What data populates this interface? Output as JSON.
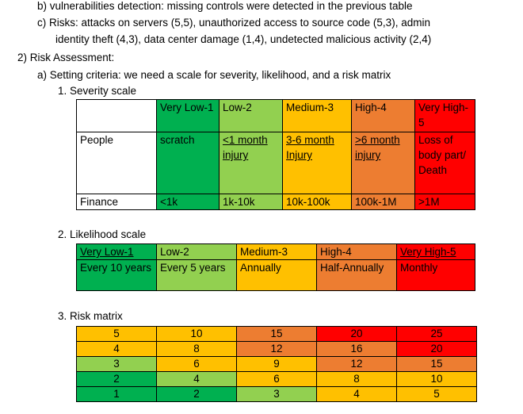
{
  "intro": {
    "line_b": "b)  vulnerabilities detection: missing controls were detected in the previous table",
    "line_c1": "c)  Risks: attacks on servers (5,5), unauthorized access to source code (5,3), admin",
    "line_c2": "identity theft (4,3), data center damage (1,4), undetected malicious activity (2,4)"
  },
  "section": {
    "heading": "2)  Risk Assessment:",
    "sub_a": "a)  Setting criteria: we need a scale for severity, likelihood, and a risk matrix"
  },
  "severity": {
    "title": "1.  Severity scale",
    "header": [
      "",
      "Very Low-1",
      "Low-2",
      "Medium-3",
      "High-4",
      "Very High-5"
    ],
    "people": [
      "People",
      "scratch",
      "<1 month injury",
      "3-6 month Injury",
      ">6 month injury",
      "Loss of body part/ Death"
    ],
    "finance": [
      "Finance",
      "<1k",
      "1k-10k",
      "10k-100k",
      "100k-1M",
      ">1M"
    ]
  },
  "likelihood": {
    "title": "2.  Likelihood scale",
    "labels": [
      "Very Low-1",
      "Low-2",
      "Medium-3",
      "High-4",
      "Very High-5"
    ],
    "frequencies": [
      "Every 10 years",
      "Every 5 years",
      "Annually",
      "Half-Annually",
      "Monthly"
    ]
  },
  "risk_matrix": {
    "title": "3.  Risk matrix",
    "rows": [
      [
        5,
        10,
        15,
        20,
        25
      ],
      [
        4,
        8,
        12,
        16,
        20
      ],
      [
        3,
        6,
        9,
        12,
        15
      ],
      [
        2,
        4,
        6,
        8,
        10
      ],
      [
        1,
        2,
        3,
        4,
        5
      ]
    ],
    "cell_colors": [
      [
        "#ffc000",
        "#ffc000",
        "#ed7d31",
        "#ff0000",
        "#ff0000"
      ],
      [
        "#ffc000",
        "#ffc000",
        "#ed7d31",
        "#ed7d31",
        "#ff0000"
      ],
      [
        "#92d050",
        "#ffc000",
        "#ffc000",
        "#ed7d31",
        "#ed7d31"
      ],
      [
        "#00b050",
        "#92d050",
        "#ffc000",
        "#ffc000",
        "#ffc000"
      ],
      [
        "#00b050",
        "#00b050",
        "#92d050",
        "#ffc000",
        "#ffc000"
      ]
    ]
  },
  "colors": {
    "very_low": "#00b050",
    "low": "#92d050",
    "medium": "#ffc000",
    "high": "#ed7d31",
    "very_high": "#ff0000"
  }
}
